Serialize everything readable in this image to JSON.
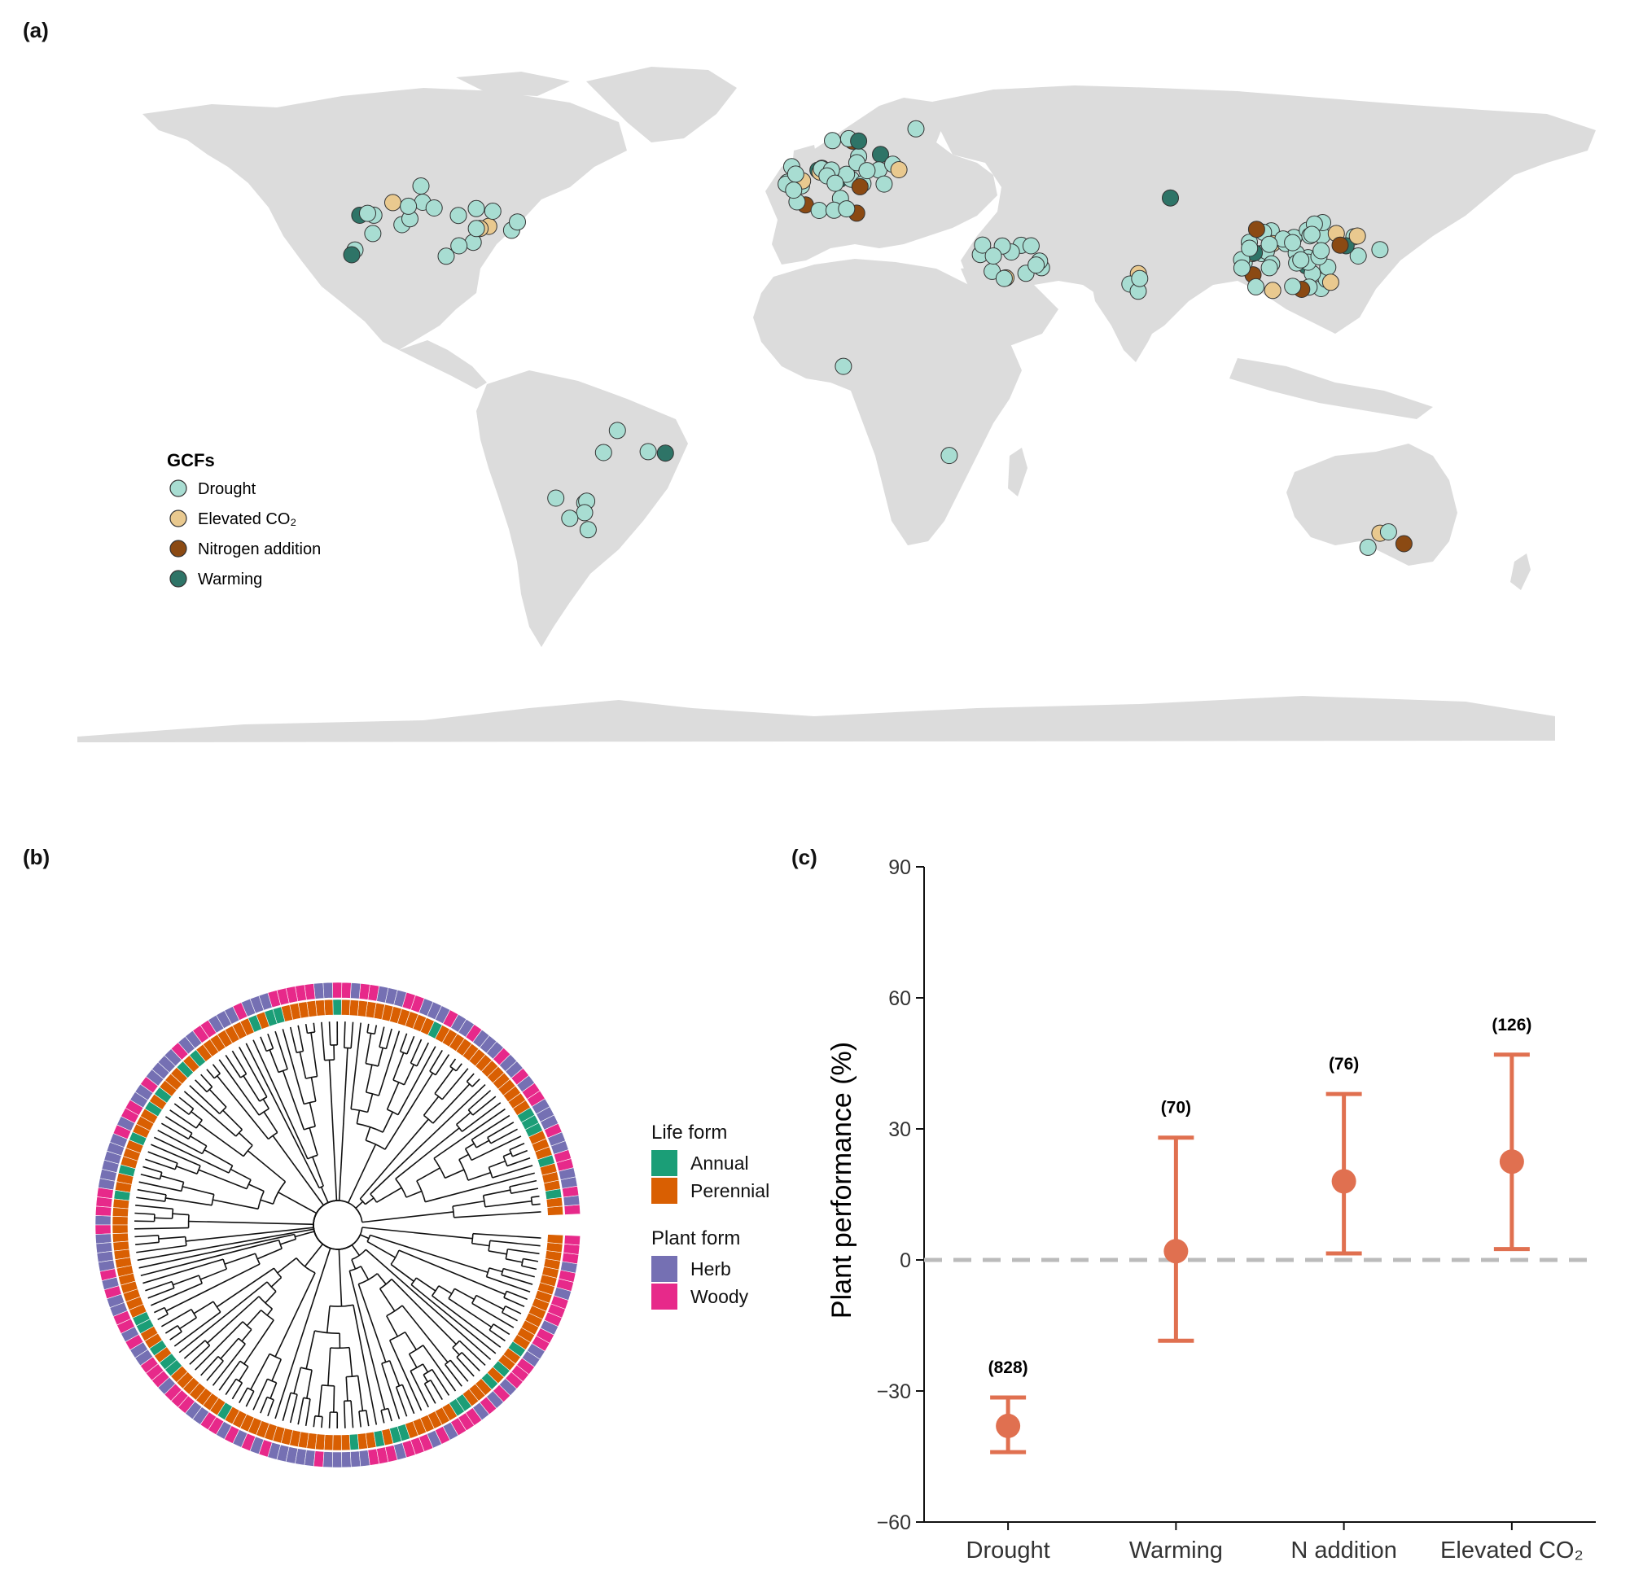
{
  "panels": {
    "a": "(a)",
    "b": "(b)",
    "c": "(c)"
  },
  "map_legend": {
    "title": "GCFs",
    "items": [
      {
        "label": "Drought",
        "color": "#a8ddd2"
      },
      {
        "label": "Elevated CO₂",
        "color": "#e9c98f"
      },
      {
        "label": "Nitrogen addition",
        "color": "#8b4a13"
      },
      {
        "label": "Warming",
        "color": "#2e7467"
      }
    ]
  },
  "tree_legend": {
    "life_form_title": "Life form",
    "life_forms": [
      {
        "label": "Annual",
        "color": "#1b9e77"
      },
      {
        "label": "Perennial",
        "color": "#d95f02"
      }
    ],
    "plant_form_title": "Plant form",
    "plant_forms": [
      {
        "label": "Herb",
        "color": "#7570b3"
      },
      {
        "label": "Woody",
        "color": "#e7298a"
      }
    ]
  },
  "chart_data": {
    "type": "scatter",
    "ylabel": "Plant performance (%)",
    "ylim": [
      -60,
      90
    ],
    "yticks": [
      -60,
      -30,
      0,
      30,
      60,
      90
    ],
    "categories": [
      "Drought",
      "Warming",
      "N addition",
      "Elevated CO₂"
    ],
    "mean": [
      -38,
      2,
      18,
      22.5
    ],
    "lower": [
      -44,
      -18.5,
      1.5,
      2.5
    ],
    "upper": [
      -31.5,
      28,
      38,
      47
    ],
    "n_labels": [
      "(828)",
      "(70)",
      "(76)",
      "(126)"
    ],
    "reference_line": 0,
    "color": "#e07050"
  }
}
